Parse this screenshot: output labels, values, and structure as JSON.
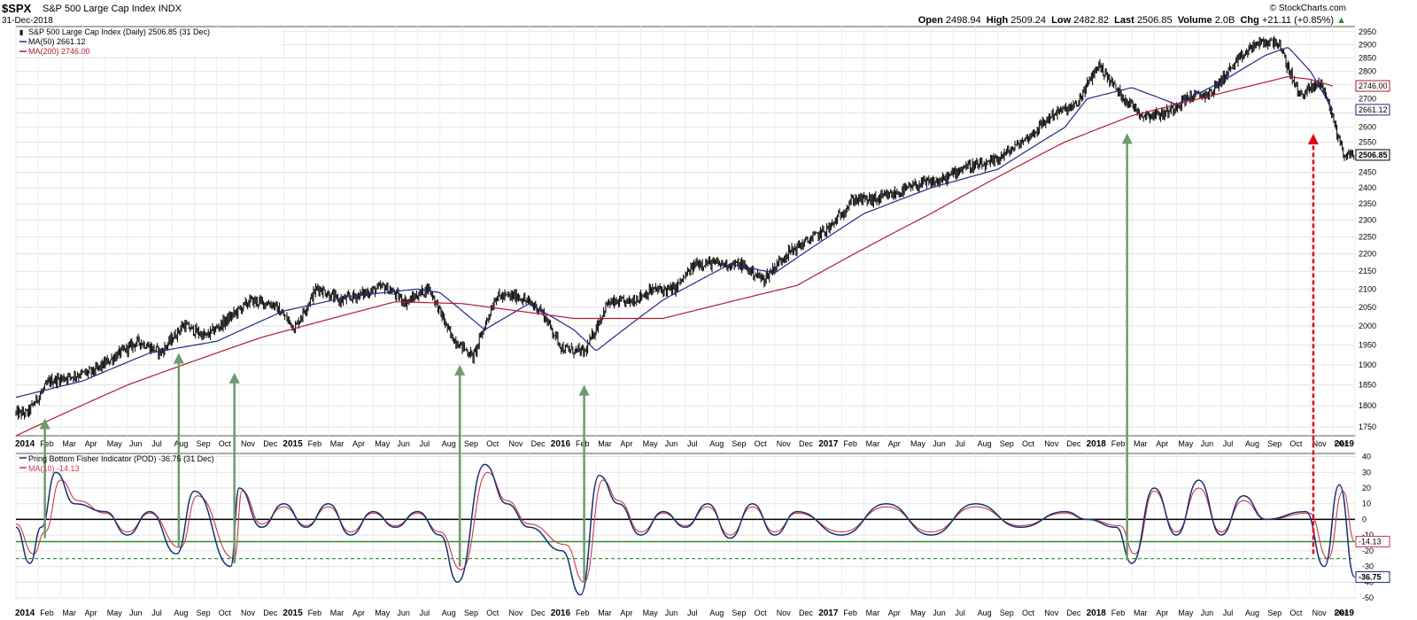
{
  "header": {
    "symbol": "$SPX",
    "name": "S&P 500 Large Cap Index",
    "exchange": "INDX",
    "date": "31-Dec-2018",
    "copyright": "© StockCharts.com",
    "open_label": "Open",
    "open": "2498.94",
    "high_label": "High",
    "high": "2509.24",
    "low_label": "Low",
    "low": "2482.82",
    "last_label": "Last",
    "last": "2506.85",
    "volume_label": "Volume",
    "volume": "2.0B",
    "chg_label": "Chg",
    "chg": "+21.11 (+0.85%)",
    "chg_arrow": "▲"
  },
  "colors": {
    "price": "#000000",
    "ma50": "#1f2a86",
    "ma200": "#b01c2e",
    "fisher": "#16306e",
    "fisher_ma": "#c73a4c",
    "arrow_green": "#6f9a6f",
    "arrow_red": "#e2001a",
    "level_green": "#2f8a2f"
  },
  "chart_data": [
    {
      "type": "line",
      "title": "S&P 500 Large Cap Index (Daily) 2506.85 (31 Dec)",
      "ylim": [
        1730,
        2970
      ],
      "y_scale": "log",
      "grid": true,
      "legend": "top-left",
      "y_ticks": [
        "2950",
        "2900",
        "2850",
        "2800",
        "2750",
        "2700",
        "2650",
        "2600",
        "2550",
        "2500",
        "2450",
        "2400",
        "2350",
        "2300",
        "2250",
        "2200",
        "2150",
        "2100",
        "2050",
        "2000",
        "1950",
        "1900",
        "1850",
        "1800",
        "1750"
      ],
      "x_tick_labels": [
        "2014",
        "Feb",
        "Mar",
        "Apr",
        "May",
        "Jun",
        "Jul",
        "Aug",
        "Sep",
        "Oct",
        "Nov",
        "Dec",
        "2015",
        "Feb",
        "Mar",
        "Apr",
        "May",
        "Jun",
        "Jul",
        "Aug",
        "Sep",
        "Oct",
        "Nov",
        "Dec",
        "2016",
        "Feb",
        "Mar",
        "Apr",
        "May",
        "Jun",
        "Jul",
        "Aug",
        "Sep",
        "Oct",
        "Nov",
        "Dec",
        "2017",
        "Feb",
        "Mar",
        "Apr",
        "May",
        "Jun",
        "Jul",
        "Aug",
        "Sep",
        "Oct",
        "Nov",
        "Dec",
        "2018",
        "Feb",
        "Mar",
        "Apr",
        "May",
        "Jun",
        "Jul",
        "Aug",
        "Sep",
        "Oct",
        "Nov",
        "Dec",
        "2019"
      ],
      "last_value_labels": [
        "2746.00",
        "2661.12",
        "2506.85"
      ],
      "series": [
        {
          "name": "S&P 500 Large Cap Index (Daily) 2506.85 (31 Dec)",
          "style": "bars",
          "x": [
            "2014-01",
            "2014-02",
            "2014-03",
            "2014-04",
            "2014-05",
            "2014-06",
            "2014-07",
            "2014-08",
            "2014-09",
            "2014-10",
            "2014-11",
            "2014-12",
            "2015-01",
            "2015-02",
            "2015-03",
            "2015-04",
            "2015-05",
            "2015-06",
            "2015-07",
            "2015-08",
            "2015-09",
            "2015-10",
            "2015-11",
            "2015-12",
            "2016-01",
            "2016-02",
            "2016-03",
            "2016-04",
            "2016-05",
            "2016-06",
            "2016-07",
            "2016-08",
            "2016-09",
            "2016-10",
            "2016-11",
            "2016-12",
            "2017-01",
            "2017-02",
            "2017-03",
            "2017-04",
            "2017-05",
            "2017-06",
            "2017-07",
            "2017-08",
            "2017-09",
            "2017-10",
            "2017-11",
            "2017-12",
            "2018-01",
            "2018-02",
            "2018-03",
            "2018-04",
            "2018-05",
            "2018-06",
            "2018-07",
            "2018-08",
            "2018-09",
            "2018-10",
            "2018-11",
            "2018-12"
          ],
          "values": [
            1782,
            1859,
            1872,
            1884,
            1924,
            1960,
            1931,
            2003,
            1972,
            2018,
            2068,
            2059,
            1995,
            2105,
            2068,
            2086,
            2107,
            2063,
            2104,
            1972,
            1920,
            2079,
            2080,
            2044,
            1940,
            1932,
            2060,
            2065,
            2097,
            2099,
            2174,
            2171,
            2168,
            2126,
            2199,
            2239,
            2279,
            2364,
            2363,
            2384,
            2412,
            2423,
            2470,
            2472,
            2519,
            2575,
            2648,
            2674,
            2824,
            2714,
            2641,
            2648,
            2705,
            2718,
            2816,
            2901,
            2914,
            2712,
            2760,
            2507
          ]
        },
        {
          "name": "MA(50) 2661.12",
          "x": [
            "2014-01",
            "2014-04",
            "2014-07",
            "2014-10",
            "2015-01",
            "2015-04",
            "2015-07",
            "2015-08",
            "2015-10",
            "2015-12",
            "2016-02",
            "2016-03",
            "2016-06",
            "2016-09",
            "2016-11",
            "2017-03",
            "2017-06",
            "2017-09",
            "2017-12",
            "2018-01",
            "2018-03",
            "2018-05",
            "2018-07",
            "2018-09",
            "2018-10",
            "2018-11",
            "2018-12"
          ],
          "values": [
            1820,
            1860,
            1930,
            1960,
            2040,
            2080,
            2100,
            2090,
            1990,
            2060,
            1990,
            1935,
            2070,
            2170,
            2145,
            2320,
            2400,
            2460,
            2600,
            2700,
            2740,
            2680,
            2760,
            2860,
            2890,
            2800,
            2661
          ]
        },
        {
          "name": "MA(200) 2746.00",
          "x": [
            "2014-01",
            "2014-06",
            "2014-12",
            "2015-06",
            "2015-09",
            "2016-02",
            "2016-06",
            "2016-12",
            "2017-06",
            "2017-12",
            "2018-03",
            "2018-07",
            "2018-10",
            "2018-11",
            "2018-12"
          ],
          "values": [
            1730,
            1850,
            1970,
            2065,
            2060,
            2020,
            2020,
            2110,
            2320,
            2550,
            2640,
            2720,
            2780,
            2770,
            2746
          ]
        }
      ]
    },
    {
      "type": "line",
      "title": "Pring Bottom Fisher Indicator (POD) -36.75 (31 Dec)",
      "ylim": [
        -50,
        42
      ],
      "y_ticks": [
        "40",
        "30",
        "20",
        "10",
        "0",
        "-10",
        "-20",
        "-30",
        "-40",
        "-50"
      ],
      "reference_lines": [
        0,
        -14.13,
        -25
      ],
      "last_value_labels": [
        "-14.13",
        "-36.75"
      ],
      "series": [
        {
          "name": "Pring Bottom Fisher Indicator (POD) -36.75 (31 Dec)",
          "x": [
            "2014-01",
            "2014-01-20",
            "2014-02-05",
            "2014-02-25",
            "2014-03-20",
            "2014-05",
            "2014-06",
            "2014-07",
            "2014-08-07",
            "2014-09",
            "2014-10-20",
            "2014-11",
            "2014-12",
            "2015-01",
            "2015-02",
            "2015-03",
            "2015-04",
            "2015-05",
            "2015-06",
            "2015-07",
            "2015-08",
            "2015-08-25",
            "2015-10",
            "2015-11",
            "2015-12",
            "2016-01-15",
            "2016-02-10",
            "2016-03-05",
            "2016-04",
            "2016-05",
            "2016-06",
            "2016-07",
            "2016-08",
            "2016-09",
            "2016-10",
            "2016-11",
            "2016-12",
            "2017-02",
            "2017-04",
            "2017-06",
            "2017-08",
            "2017-10",
            "2017-12",
            "2018-01",
            "2018-02-10",
            "2018-03",
            "2018-04",
            "2018-05",
            "2018-06",
            "2018-07",
            "2018-08",
            "2018-09",
            "2018-10-25",
            "2018-11-20",
            "2018-12-10",
            "2018-12-31"
          ],
          "values": [
            -5,
            -28,
            -5,
            30,
            10,
            5,
            -10,
            5,
            -22,
            18,
            -30,
            20,
            -5,
            10,
            -5,
            10,
            -10,
            5,
            -5,
            5,
            -10,
            -40,
            35,
            10,
            -5,
            -20,
            -48,
            28,
            10,
            -10,
            5,
            -5,
            10,
            -12,
            10,
            -10,
            5,
            -10,
            10,
            -10,
            10,
            -5,
            5,
            0,
            -5,
            -28,
            20,
            -10,
            25,
            -10,
            15,
            0,
            5,
            -30,
            22,
            -36.75
          ]
        },
        {
          "name": "MA(10) -14.13",
          "x": [
            "2014-01",
            "2014-01-25",
            "2014-02-10",
            "2014-03-01",
            "2014-03-25",
            "2014-05",
            "2014-06",
            "2014-07",
            "2014-08-12",
            "2014-09-05",
            "2014-10-25",
            "2014-11-05",
            "2014-12",
            "2015-01",
            "2015-02",
            "2015-03",
            "2015-04",
            "2015-05",
            "2015-06",
            "2015-07",
            "2015-08",
            "2015-08-30",
            "2015-10-05",
            "2015-11",
            "2015-12",
            "2016-01-20",
            "2016-02-15",
            "2016-03-10",
            "2016-04",
            "2016-05",
            "2016-06",
            "2016-07",
            "2016-08",
            "2016-09",
            "2016-10",
            "2016-11",
            "2016-12",
            "2017-02",
            "2017-04",
            "2017-06",
            "2017-08",
            "2017-10",
            "2017-12",
            "2018-01",
            "2018-02-15",
            "2018-03-05",
            "2018-04",
            "2018-05",
            "2018-06",
            "2018-07",
            "2018-08",
            "2018-09",
            "2018-10-30",
            "2018-11-25",
            "2018-12-15",
            "2018-12-31"
          ],
          "values": [
            -3,
            -22,
            -8,
            25,
            12,
            4,
            -8,
            4,
            -18,
            15,
            -25,
            18,
            -3,
            8,
            -4,
            8,
            -8,
            4,
            -4,
            4,
            -8,
            -32,
            30,
            12,
            -3,
            -16,
            -40,
            25,
            12,
            -8,
            4,
            -4,
            8,
            -10,
            8,
            -8,
            4,
            -8,
            8,
            -8,
            8,
            -4,
            4,
            0,
            -4,
            -22,
            18,
            -8,
            20,
            -8,
            12,
            0,
            4,
            -25,
            18,
            -14.13
          ]
        }
      ]
    }
  ]
}
